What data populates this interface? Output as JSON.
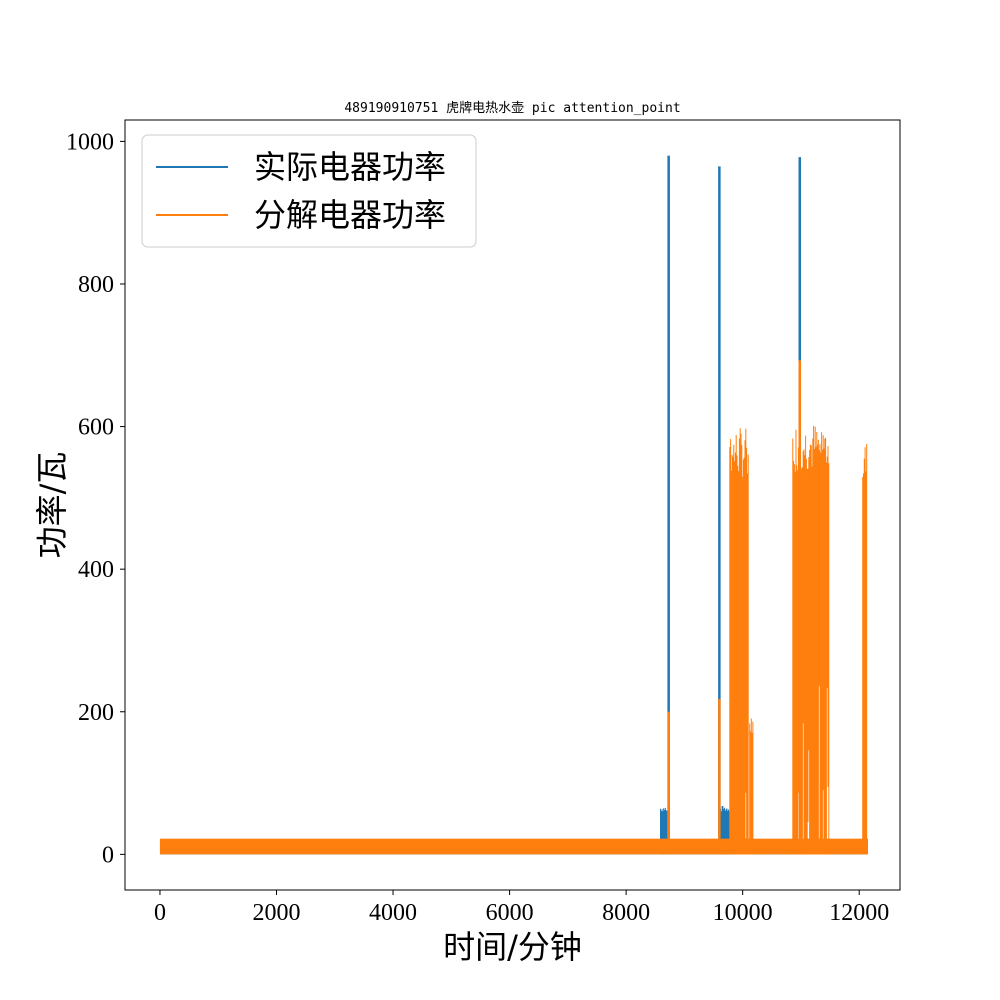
{
  "chart_data": {
    "type": "line",
    "title": "489190910751 虎牌电热水壶 pic attention_point",
    "xlabel": "时间/分钟",
    "ylabel": "功率/瓦",
    "xlim": [
      -600,
      12700
    ],
    "ylim": [
      -50,
      1030
    ],
    "xticks": [
      0,
      2000,
      4000,
      6000,
      8000,
      10000,
      12000
    ],
    "yticks": [
      0,
      200,
      400,
      600,
      800,
      1000
    ],
    "grid": false,
    "legend": {
      "placement": "top-left"
    },
    "series": [
      {
        "name": "实际电器功率",
        "color": "#1f77b4",
        "baseline": {
          "x_range": [
            0,
            12150
          ],
          "low": 0,
          "high": 20
        },
        "bursts": [
          {
            "x_start": 8590,
            "x_end": 8700,
            "low": 0,
            "high": 68
          },
          {
            "x_start": 9620,
            "x_end": 9800,
            "low": 0,
            "high": 68
          }
        ],
        "spikes": [
          {
            "x": 8730,
            "y": 980
          },
          {
            "x": 9600,
            "y": 965
          },
          {
            "x": 10980,
            "y": 978
          }
        ]
      },
      {
        "name": "分解电器功率",
        "color": "#ff7f0e",
        "baseline": {
          "x_range": [
            0,
            12150
          ],
          "low": 0,
          "high": 22
        },
        "spikes": [
          {
            "x": 8730,
            "y": 200
          },
          {
            "x": 9600,
            "y": 218
          },
          {
            "x": 10980,
            "y": 693
          }
        ],
        "bursts": [
          {
            "x_start": 9780,
            "x_end": 10100,
            "low": 0,
            "high": 600
          },
          {
            "x_start": 10120,
            "x_end": 10180,
            "low": 0,
            "high": 193
          },
          {
            "x_start": 10860,
            "x_end": 11480,
            "low": 0,
            "high": 608
          },
          {
            "x_start": 12060,
            "x_end": 12130,
            "low": 0,
            "high": 583
          }
        ]
      }
    ]
  }
}
